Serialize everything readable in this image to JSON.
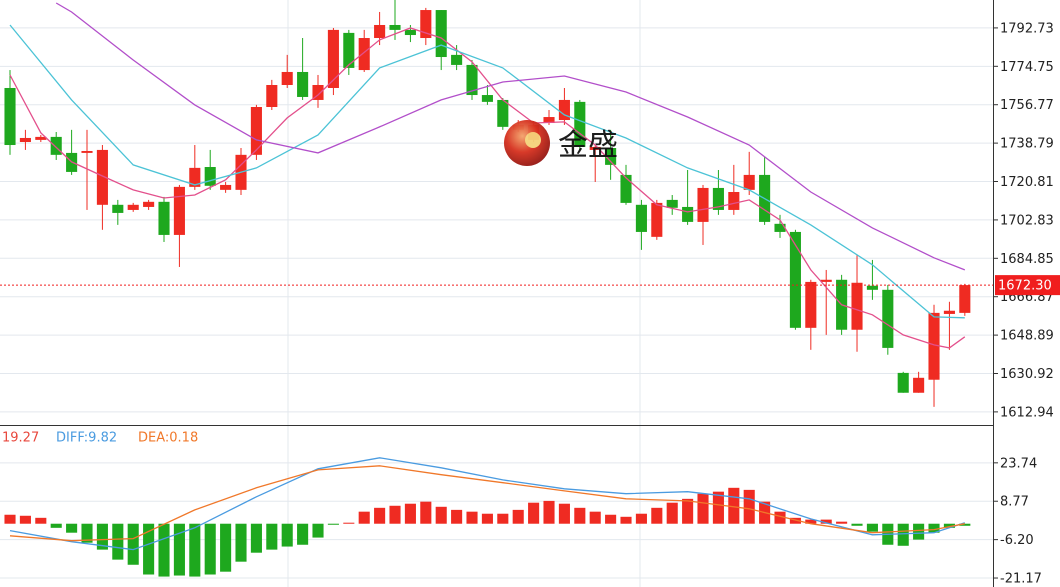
{
  "chart_data": [
    {
      "type": "candlestick",
      "watermark": "金盛",
      "x": [
        0,
        1,
        2,
        3,
        4,
        5,
        6,
        7,
        8,
        9,
        10,
        11,
        12,
        13,
        14,
        15,
        16,
        17,
        18,
        19,
        20,
        21,
        22,
        23,
        24,
        25,
        26,
        27,
        28,
        29,
        30,
        31,
        32,
        33,
        34,
        35,
        36,
        37,
        38,
        39,
        40,
        41,
        42,
        43,
        44,
        45,
        46,
        47,
        48,
        49,
        50,
        51,
        52,
        53,
        54,
        55,
        56,
        57,
        58,
        59,
        60,
        61,
        62
      ],
      "open": [
        1764.6,
        1739.3,
        1740.3,
        1741.7,
        1734.2,
        1734.2,
        1709.9,
        1709.9,
        1707.5,
        1708.9,
        1711.3,
        1695.8,
        1718.3,
        1727.6,
        1716.9,
        1716.9,
        1733.3,
        1755.7,
        1766.0,
        1772.1,
        1759.0,
        1764.6,
        1790.4,
        1773.0,
        1788.0,
        1794.1,
        1791.8,
        1788.0,
        1801.1,
        1780.1,
        1775.4,
        1761.3,
        1759.0,
        1745.0,
        1740.3,
        1748.2,
        1749.6,
        1758.1,
        1735.6,
        1736.5,
        1723.9,
        1709.9,
        1694.9,
        1712.2,
        1708.9,
        1701.9,
        1717.8,
        1707.5,
        1716.9,
        1723.9,
        1701.0,
        1697.2,
        1652.3,
        1673.8,
        1674.8,
        1651.4,
        1672.0,
        1670.1,
        1631.2,
        1621.9,
        1628.0,
        1658.8,
        1659.3
      ],
      "high": [
        1773.0,
        1745.0,
        1742.6,
        1744.0,
        1745.0,
        1745.0,
        1737.9,
        1712.2,
        1710.8,
        1712.2,
        1713.6,
        1719.2,
        1737.9,
        1735.6,
        1720.6,
        1736.5,
        1756.7,
        1768.4,
        1780.1,
        1788.0,
        1770.7,
        1792.7,
        1791.8,
        1791.8,
        1800.2,
        1805.8,
        1794.1,
        1802.1,
        1801.1,
        1784.7,
        1777.7,
        1766.0,
        1759.9,
        1749.6,
        1749.0,
        1754.3,
        1764.6,
        1759.0,
        1737.9,
        1745.0,
        1728.6,
        1712.2,
        1712.2,
        1714.5,
        1726.2,
        1719.2,
        1726.2,
        1728.6,
        1734.7,
        1732.3,
        1705.2,
        1698.2,
        1674.8,
        1679.4,
        1677.1,
        1686.5,
        1684.1,
        1672.4,
        1631.7,
        1631.7,
        1663.1,
        1664.5,
        1672.9
      ],
      "low": [
        1733.3,
        1735.6,
        1739.3,
        1730.9,
        1723.9,
        1707.5,
        1698.2,
        1700.5,
        1706.6,
        1707.5,
        1692.5,
        1680.8,
        1716.9,
        1716.9,
        1715.5,
        1714.5,
        1730.9,
        1754.3,
        1764.6,
        1759.0,
        1755.3,
        1761.3,
        1770.7,
        1772.1,
        1784.7,
        1787.1,
        1786.1,
        1784.7,
        1773.0,
        1773.0,
        1759.0,
        1756.7,
        1745.0,
        1744.0,
        1739.3,
        1747.3,
        1747.3,
        1735.6,
        1720.6,
        1721.6,
        1709.9,
        1688.8,
        1693.5,
        1705.2,
        1700.5,
        1691.1,
        1705.2,
        1705.2,
        1714.5,
        1700.5,
        1694.4,
        1651.4,
        1642.0,
        1649.0,
        1649.0,
        1641.1,
        1665.4,
        1639.7,
        1621.9,
        1621.9,
        1615.3,
        1642.0,
        1657.9
      ],
      "close": [
        1737.9,
        1741.2,
        1741.7,
        1733.3,
        1725.3,
        1735.1,
        1735.6,
        1706.1,
        1709.9,
        1711.3,
        1695.8,
        1718.3,
        1727.2,
        1718.8,
        1719.2,
        1733.3,
        1755.7,
        1766.0,
        1772.1,
        1760.4,
        1766.0,
        1791.8,
        1774.0,
        1788.0,
        1794.1,
        1791.8,
        1789.4,
        1801.1,
        1779.1,
        1775.4,
        1761.3,
        1758.1,
        1746.4,
        1747.3,
        1747.3,
        1751.0,
        1759.0,
        1737.0,
        1737.0,
        1728.6,
        1710.8,
        1697.2,
        1710.8,
        1708.5,
        1701.9,
        1717.8,
        1707.5,
        1715.9,
        1723.9,
        1701.9,
        1697.2,
        1652.3,
        1673.8,
        1674.8,
        1651.4,
        1673.4,
        1670.1,
        1642.9,
        1621.9,
        1628.9,
        1659.3,
        1660.3,
        1672.3
      ],
      "up_color": "#ef2b22",
      "down_color": "#1ea81e",
      "lines": [
        {
          "color": "#e3508c",
          "x": [
            0,
            2,
            4,
            6,
            8,
            10,
            12,
            14,
            16,
            18,
            20,
            22,
            24,
            26,
            28,
            30,
            32,
            34,
            36,
            38,
            40,
            42,
            44,
            46,
            48,
            50,
            52,
            54,
            56,
            58,
            60,
            61,
            62
          ],
          "values": [
            1770.7,
            1743.6,
            1730.0,
            1723.4,
            1716.9,
            1713.1,
            1714.5,
            1721.6,
            1735.6,
            1750.6,
            1761.3,
            1775.4,
            1787.1,
            1792.7,
            1788.0,
            1776.8,
            1759.0,
            1748.2,
            1748.7,
            1737.9,
            1722.5,
            1709.9,
            1706.6,
            1708.9,
            1712.2,
            1702.8,
            1679.4,
            1663.1,
            1658.4,
            1649.0,
            1644.3,
            1642.9,
            1648.1
          ]
        },
        {
          "color": "#4cc3d6",
          "x": [
            0,
            4,
            8,
            12,
            16,
            20,
            24,
            28,
            32,
            36,
            40,
            44,
            48,
            52,
            56,
            60,
            62
          ],
          "values": [
            1794.1,
            1759.0,
            1728.6,
            1719.2,
            1727.2,
            1742.6,
            1774.0,
            1784.7,
            1774.0,
            1752.0,
            1741.2,
            1727.2,
            1716.9,
            1700.5,
            1681.8,
            1657.4,
            1657.0
          ]
        },
        {
          "color": "#b24fca",
          "x": [
            3,
            4,
            8,
            12,
            16,
            20,
            24,
            28,
            32,
            36,
            40,
            44,
            48,
            52,
            56,
            60,
            62
          ],
          "values": [
            1804.4,
            1800.2,
            1777.7,
            1756.7,
            1740.3,
            1734.2,
            1746.4,
            1759.0,
            1767.4,
            1770.2,
            1762.7,
            1751.0,
            1737.9,
            1715.9,
            1699.1,
            1685.1,
            1679.4
          ]
        }
      ],
      "xlim": [
        -0.65,
        63.83
      ],
      "ylim": [
        1606.8,
        1805.8
      ],
      "yticks": [
        1792.73,
        1774.75,
        1756.77,
        1738.79,
        1720.81,
        1702.83,
        1684.85,
        1666.87,
        1648.89,
        1630.92,
        1612.94
      ],
      "grid": true,
      "last_price": {
        "value": 1672.3,
        "label": "1672.30"
      },
      "last_price_color": "#f01e1e"
    },
    {
      "type": "macd",
      "x": [
        0,
        1,
        2,
        3,
        4,
        5,
        6,
        7,
        8,
        9,
        10,
        11,
        12,
        13,
        14,
        15,
        16,
        17,
        18,
        19,
        20,
        21,
        22,
        23,
        24,
        25,
        26,
        27,
        28,
        29,
        30,
        31,
        32,
        33,
        34,
        35,
        36,
        37,
        38,
        39,
        40,
        41,
        42,
        43,
        44,
        45,
        46,
        47,
        48,
        49,
        50,
        51,
        52,
        53,
        54,
        55,
        56,
        57,
        58,
        59,
        60,
        61,
        62
      ],
      "histogram": {
        "name": "19.27",
        "color": "#e8473c",
        "values": [
          3.5,
          3.1,
          2.3,
          -1.6,
          -3.5,
          -7.4,
          -10.1,
          -14.0,
          -16.0,
          -19.8,
          -20.6,
          -20.2,
          -20.6,
          -19.8,
          -18.7,
          -14.8,
          -11.3,
          -10.1,
          -8.9,
          -8.2,
          -5.4,
          -0.4,
          0.4,
          4.7,
          6.2,
          7.0,
          7.8,
          8.6,
          6.6,
          5.4,
          4.7,
          3.9,
          3.9,
          5.4,
          8.2,
          8.9,
          7.8,
          6.2,
          4.7,
          3.5,
          2.7,
          3.9,
          6.2,
          8.2,
          9.7,
          11.7,
          12.5,
          14.0,
          13.2,
          8.6,
          4.7,
          2.3,
          1.6,
          1.6,
          0.8,
          -0.8,
          -3.1,
          -8.2,
          -8.6,
          -6.2,
          -3.5,
          -1.6,
          -0.8
        ]
      },
      "up_color": "#ef2b22",
      "down_color": "#1ea81e",
      "series": [
        {
          "name": "DIFF:9.82",
          "color": "#4a9be0",
          "x": [
            0,
            4,
            8,
            12,
            16,
            20,
            24,
            28,
            32,
            36,
            40,
            44,
            48,
            52,
            56,
            60,
            62
          ],
          "values": [
            -2.7,
            -7.0,
            -10.1,
            -1.6,
            10.5,
            21.4,
            25.7,
            21.8,
            17.1,
            13.6,
            11.7,
            12.5,
            9.7,
            1.9,
            -4.3,
            -3.5,
            0.4
          ]
        },
        {
          "name": "DEA:0.18",
          "color": "#f0782a",
          "x": [
            0,
            4,
            8,
            12,
            16,
            20,
            24,
            28,
            32,
            36,
            40,
            44,
            48,
            52,
            56,
            60,
            62
          ],
          "values": [
            -4.7,
            -6.6,
            -5.8,
            5.4,
            14.0,
            21.0,
            22.6,
            19.1,
            16.0,
            12.8,
            9.7,
            8.9,
            5.8,
            0,
            -3.5,
            -2.3,
            0
          ]
        }
      ],
      "xlim": [
        -0.65,
        63.83
      ],
      "ylim": [
        -24.67,
        38.1
      ],
      "yticks": [
        23.74,
        8.77,
        {
          "value": -6.2,
          "label": "-6.20"
        },
        -21.17
      ],
      "grid": true
    }
  ]
}
